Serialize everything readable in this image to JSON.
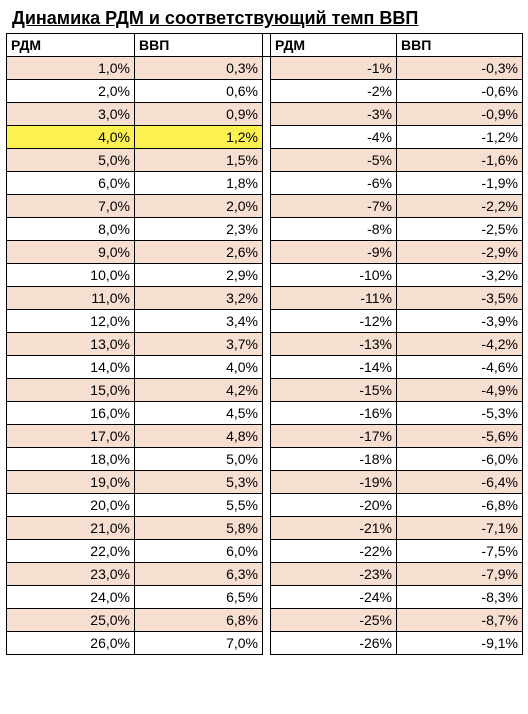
{
  "title": "Динамика РДМ и соответствующий темп ВВП",
  "headers": {
    "c1": "РДМ",
    "c2": "ВВП",
    "c3": "РДМ",
    "c4": "ВВП"
  },
  "colors": {
    "shaded_bg": "#f6ded1",
    "highlight_bg": "#fcf151",
    "border": "#000000",
    "background": "#ffffff"
  },
  "highlight_row_index": 3,
  "rows": [
    {
      "a": "1,0%",
      "b": "0,3%",
      "c": "-1%",
      "d": "-0,3%"
    },
    {
      "a": "2,0%",
      "b": "0,6%",
      "c": "-2%",
      "d": "-0,6%"
    },
    {
      "a": "3,0%",
      "b": "0,9%",
      "c": "-3%",
      "d": "-0,9%"
    },
    {
      "a": "4,0%",
      "b": "1,2%",
      "c": "-4%",
      "d": "-1,2%"
    },
    {
      "a": "5,0%",
      "b": "1,5%",
      "c": "-5%",
      "d": "-1,6%"
    },
    {
      "a": "6,0%",
      "b": "1,8%",
      "c": "-6%",
      "d": "-1,9%"
    },
    {
      "a": "7,0%",
      "b": "2,0%",
      "c": "-7%",
      "d": "-2,2%"
    },
    {
      "a": "8,0%",
      "b": "2,3%",
      "c": "-8%",
      "d": "-2,5%"
    },
    {
      "a": "9,0%",
      "b": "2,6%",
      "c": "-9%",
      "d": "-2,9%"
    },
    {
      "a": "10,0%",
      "b": "2,9%",
      "c": "-10%",
      "d": "-3,2%"
    },
    {
      "a": "11,0%",
      "b": "3,2%",
      "c": "-11%",
      "d": "-3,5%"
    },
    {
      "a": "12,0%",
      "b": "3,4%",
      "c": "-12%",
      "d": "-3,9%"
    },
    {
      "a": "13,0%",
      "b": "3,7%",
      "c": "-13%",
      "d": "-4,2%"
    },
    {
      "a": "14,0%",
      "b": "4,0%",
      "c": "-14%",
      "d": "-4,6%"
    },
    {
      "a": "15,0%",
      "b": "4,2%",
      "c": "-15%",
      "d": "-4,9%"
    },
    {
      "a": "16,0%",
      "b": "4,5%",
      "c": "-16%",
      "d": "-5,3%"
    },
    {
      "a": "17,0%",
      "b": "4,8%",
      "c": "-17%",
      "d": "-5,6%"
    },
    {
      "a": "18,0%",
      "b": "5,0%",
      "c": "-18%",
      "d": "-6,0%"
    },
    {
      "a": "19,0%",
      "b": "5,3%",
      "c": "-19%",
      "d": "-6,4%"
    },
    {
      "a": "20,0%",
      "b": "5,5%",
      "c": "-20%",
      "d": "-6,8%"
    },
    {
      "a": "21,0%",
      "b": "5,8%",
      "c": "-21%",
      "d": "-7,1%"
    },
    {
      "a": "22,0%",
      "b": "6,0%",
      "c": "-22%",
      "d": "-7,5%"
    },
    {
      "a": "23,0%",
      "b": "6,3%",
      "c": "-23%",
      "d": "-7,9%"
    },
    {
      "a": "24,0%",
      "b": "6,5%",
      "c": "-24%",
      "d": "-8,3%"
    },
    {
      "a": "25,0%",
      "b": "6,8%",
      "c": "-25%",
      "d": "-8,7%"
    },
    {
      "a": "26,0%",
      "b": "7,0%",
      "c": "-26%",
      "d": "-9,1%"
    }
  ]
}
